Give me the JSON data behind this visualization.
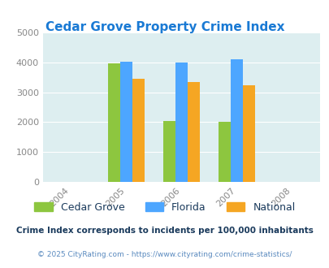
{
  "title": "Cedar Grove Property Crime Index",
  "bar_years": [
    2005,
    2006,
    2007
  ],
  "cedar_grove": [
    3950,
    2050,
    2020
  ],
  "florida": [
    4020,
    4000,
    4090
  ],
  "national": [
    3440,
    3340,
    3230
  ],
  "cedar_grove_color": "#8dc63f",
  "florida_color": "#4da6ff",
  "national_color": "#f5a623",
  "bg_color": "#ddeef0",
  "title_color": "#1a7ad4",
  "ylabel_ticks": [
    0,
    1000,
    2000,
    3000,
    4000,
    5000
  ],
  "ylim": [
    0,
    5000
  ],
  "bar_width": 0.22,
  "legend_labels": [
    "Cedar Grove",
    "Florida",
    "National"
  ],
  "footnote1": "Crime Index corresponds to incidents per 100,000 inhabitants",
  "footnote2": "© 2025 CityRating.com - https://www.cityrating.com/crime-statistics/",
  "tick_color": "#888888",
  "legend_label_color": "#1a3a5c",
  "footnote1_color": "#1a3a5c",
  "footnote2_color": "#5a8abf",
  "grid_color": "#ffffff",
  "xtick_labels": [
    "2004",
    "2005",
    "2006",
    "2007",
    "2008"
  ],
  "xtick_positions": [
    -1,
    0,
    1,
    2,
    3
  ],
  "xlim": [
    -1.5,
    3.5
  ]
}
